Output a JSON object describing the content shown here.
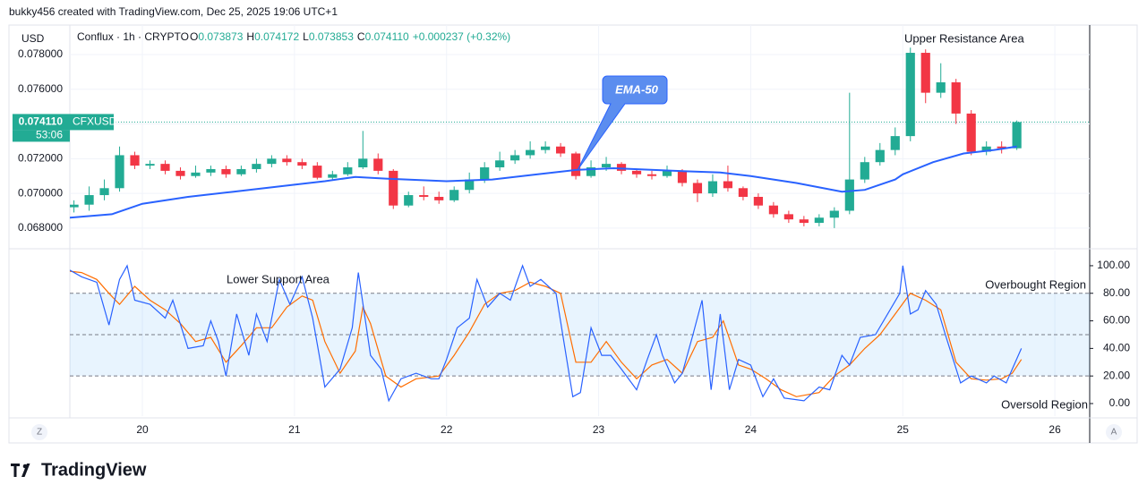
{
  "credit": "bukky456 created with TradingView.com, Dec 25, 2025 19:06 UTC+1",
  "logo": "TradingView",
  "axis_buttons": [
    "Z",
    "A"
  ],
  "chart_data": {
    "type": "candlestick",
    "title": "Conflux · 1h · CRYPTO",
    "currency": "USD",
    "ohlc": [
      {
        "label": "O",
        "value": "0.073873"
      },
      {
        "label": "H",
        "value": "0.074172"
      },
      {
        "label": "L",
        "value": "0.073853"
      },
      {
        "label": "C",
        "value": "0.074110"
      }
    ],
    "change": "+0.000237 (+0.32%)",
    "up_color": "#22ab94",
    "down_color": "#f23645",
    "x": [
      19.55,
      19.65,
      19.75,
      19.85,
      19.95,
      20.05,
      20.15,
      20.25,
      20.35,
      20.45,
      20.55,
      20.65,
      20.75,
      20.85,
      20.95,
      21.05,
      21.15,
      21.25,
      21.35,
      21.45,
      21.55,
      21.65,
      21.75,
      21.85,
      21.95,
      22.05,
      22.15,
      22.25,
      22.35,
      22.45,
      22.55,
      22.65,
      22.75,
      22.85,
      22.95,
      23.05,
      23.15,
      23.25,
      23.35,
      23.45,
      23.55,
      23.65,
      23.75,
      23.85,
      23.95,
      24.05,
      24.15,
      24.25,
      24.35,
      24.45,
      24.55,
      24.65,
      24.75,
      24.85,
      24.95,
      25.05,
      25.15,
      25.25,
      25.35,
      25.45,
      25.55,
      25.65,
      25.75
    ],
    "open": [
      0.0692,
      0.06935,
      0.0699,
      0.0703,
      0.0722,
      0.0716,
      0.0717,
      0.0713,
      0.071,
      0.0712,
      0.0714,
      0.0711,
      0.0714,
      0.0717,
      0.072,
      0.0718,
      0.0716,
      0.0709,
      0.0711,
      0.0715,
      0.072,
      0.0713,
      0.0693,
      0.0699,
      0.0698,
      0.0696,
      0.0702,
      0.0708,
      0.0715,
      0.0719,
      0.0722,
      0.0725,
      0.0727,
      0.0723,
      0.071,
      0.0715,
      0.0717,
      0.0713,
      0.0711,
      0.071,
      0.0713,
      0.0706,
      0.07,
      0.0707,
      0.0703,
      0.0698,
      0.0693,
      0.0688,
      0.0685,
      0.0683,
      0.0686,
      0.069,
      0.0708,
      0.0718,
      0.0725,
      0.0733,
      0.0781,
      0.0758,
      0.0764,
      0.0746,
      0.0724,
      0.0727,
      0.0726
    ],
    "high": [
      0.0696,
      0.0704,
      0.0708,
      0.0727,
      0.0724,
      0.0719,
      0.0719,
      0.0715,
      0.0716,
      0.0716,
      0.0716,
      0.0716,
      0.072,
      0.0722,
      0.0722,
      0.072,
      0.0718,
      0.0713,
      0.0718,
      0.0736,
      0.0723,
      0.0714,
      0.0701,
      0.0704,
      0.0701,
      0.0704,
      0.0712,
      0.0718,
      0.0724,
      0.0725,
      0.073,
      0.073,
      0.0729,
      0.0724,
      0.0719,
      0.0721,
      0.0718,
      0.0714,
      0.0713,
      0.0716,
      0.0714,
      0.0708,
      0.0711,
      0.0716,
      0.0704,
      0.07,
      0.0695,
      0.069,
      0.0687,
      0.0688,
      0.0692,
      0.0758,
      0.0721,
      0.0729,
      0.0738,
      0.0784,
      0.0783,
      0.0775,
      0.0766,
      0.0748,
      0.073,
      0.073,
      0.0742
    ],
    "low": [
      0.0689,
      0.069,
      0.0696,
      0.0701,
      0.0714,
      0.0714,
      0.0711,
      0.0708,
      0.0709,
      0.071,
      0.0709,
      0.071,
      0.0712,
      0.0715,
      0.0716,
      0.0714,
      0.0708,
      0.0708,
      0.071,
      0.0714,
      0.0711,
      0.0691,
      0.0692,
      0.0696,
      0.0694,
      0.0695,
      0.07,
      0.0706,
      0.0713,
      0.0717,
      0.072,
      0.0723,
      0.0721,
      0.0708,
      0.0709,
      0.0713,
      0.0711,
      0.0709,
      0.0708,
      0.0709,
      0.0704,
      0.0695,
      0.0698,
      0.0701,
      0.0696,
      0.0691,
      0.0686,
      0.0683,
      0.0681,
      0.0681,
      0.068,
      0.0688,
      0.0706,
      0.0716,
      0.0722,
      0.073,
      0.0752,
      0.0755,
      0.074,
      0.0722,
      0.0722,
      0.0723,
      0.0725
    ],
    "close": [
      0.06935,
      0.0699,
      0.0703,
      0.0722,
      0.0716,
      0.0717,
      0.0713,
      0.071,
      0.0712,
      0.0714,
      0.0711,
      0.0714,
      0.0717,
      0.072,
      0.0718,
      0.0716,
      0.0709,
      0.0711,
      0.0715,
      0.072,
      0.0713,
      0.0693,
      0.0699,
      0.0698,
      0.0696,
      0.0702,
      0.0708,
      0.0715,
      0.0719,
      0.0722,
      0.0725,
      0.0727,
      0.0723,
      0.071,
      0.0715,
      0.0717,
      0.0713,
      0.0711,
      0.071,
      0.0713,
      0.0706,
      0.07,
      0.0707,
      0.0703,
      0.0698,
      0.0693,
      0.0688,
      0.0685,
      0.0683,
      0.0686,
      0.069,
      0.0708,
      0.0718,
      0.0725,
      0.0733,
      0.0781,
      0.0758,
      0.0764,
      0.0746,
      0.0724,
      0.0727,
      0.0726,
      0.07411
    ],
    "xlim": [
      19.523,
      26.229
    ],
    "xticks": [
      20,
      21,
      22,
      23,
      24,
      25,
      26
    ],
    "ylim": [
      0.06686,
      0.0797
    ],
    "yticks": [
      {
        "value": 0.068,
        "label": "0.068000"
      },
      {
        "value": 0.07,
        "label": "0.070000"
      },
      {
        "value": 0.072,
        "label": "0.072000"
      },
      {
        "value": 0.074,
        "label": "0.074000"
      },
      {
        "value": 0.076,
        "label": "0.076000"
      },
      {
        "value": 0.078,
        "label": "0.078000"
      }
    ],
    "last_price": {
      "value": 0.07411,
      "label": "0.074110",
      "symbol": "CFXUSD",
      "countdown": "53:06"
    },
    "ema": {
      "label": "EMA-50",
      "color": "#2962ff",
      "x": [
        19.52,
        19.8,
        20.0,
        20.3,
        20.6,
        21.0,
        21.2,
        21.4,
        21.6,
        22.0,
        22.3,
        22.6,
        22.85,
        23.1,
        23.5,
        23.8,
        24.0,
        24.3,
        24.6,
        24.75,
        24.95,
        25.0,
        25.2,
        25.4,
        25.6,
        25.75
      ],
      "values": [
        0.0686,
        0.0688,
        0.0694,
        0.0698,
        0.0701,
        0.0705,
        0.0707,
        0.07095,
        0.07085,
        0.0707,
        0.0708,
        0.0711,
        0.07135,
        0.07145,
        0.0713,
        0.0712,
        0.071,
        0.0706,
        0.0701,
        0.0702,
        0.0708,
        0.0711,
        0.0718,
        0.0723,
        0.0725,
        0.0727
      ]
    },
    "annotations": [
      "Upper Resistance Area",
      "Lower Support Area",
      "Overbought Region",
      "Oversold Region"
    ],
    "stoch": {
      "ylim": [
        -9.1,
        111
      ],
      "yticks": [
        {
          "value": 0,
          "label": "0.00"
        },
        {
          "value": 20,
          "label": "20.00"
        },
        {
          "value": 40,
          "label": "40.00"
        },
        {
          "value": 60,
          "label": "60.00"
        },
        {
          "value": 80,
          "label": "80.00"
        },
        {
          "value": 100,
          "label": "100.00"
        }
      ],
      "levels": [
        20,
        50,
        80
      ],
      "k": {
        "color": "#2962ff",
        "x": [
          19.52,
          19.6,
          19.7,
          19.78,
          19.85,
          19.9,
          19.95,
          20.05,
          20.15,
          20.2,
          20.3,
          20.4,
          20.45,
          20.5,
          20.55,
          20.62,
          20.7,
          20.75,
          20.82,
          20.9,
          20.97,
          21.05,
          21.12,
          21.2,
          21.3,
          21.38,
          21.42,
          21.5,
          21.57,
          21.62,
          21.7,
          21.8,
          21.9,
          21.95,
          22.0,
          22.07,
          22.15,
          22.2,
          22.27,
          22.35,
          22.42,
          22.5,
          22.55,
          22.62,
          22.72,
          22.83,
          22.88,
          22.95,
          23.02,
          23.08,
          23.15,
          23.25,
          23.32,
          23.38,
          23.42,
          23.5,
          23.55,
          23.62,
          23.68,
          23.74,
          23.8,
          23.86,
          23.92,
          24.0,
          24.08,
          24.15,
          24.22,
          24.35,
          24.45,
          24.52,
          24.6,
          24.65,
          24.72,
          24.82,
          24.9,
          24.98,
          25.0,
          25.05,
          25.1,
          25.15,
          25.22,
          25.28,
          25.38,
          25.45,
          25.55,
          25.6,
          25.68,
          25.72,
          25.78
        ],
        "values": [
          97,
          92,
          88,
          57,
          90,
          100,
          75,
          72,
          62,
          75,
          40,
          42,
          60,
          45,
          20,
          65,
          35,
          65,
          45,
          90,
          72,
          92,
          62,
          12,
          25,
          55,
          95,
          35,
          25,
          2,
          18,
          22,
          18,
          18,
          32,
          55,
          62,
          90,
          70,
          80,
          75,
          100,
          85,
          90,
          80,
          5,
          8,
          55,
          35,
          35,
          25,
          10,
          32,
          50,
          35,
          15,
          22,
          50,
          75,
          10,
          65,
          10,
          32,
          28,
          5,
          18,
          4,
          2,
          12,
          10,
          35,
          28,
          48,
          50,
          65,
          80,
          100,
          65,
          68,
          82,
          72,
          50,
          15,
          20,
          15,
          20,
          15,
          25,
          40
        ]
      },
      "d": {
        "color": "#ff6d00",
        "x": [
          19.52,
          19.6,
          19.7,
          19.78,
          19.85,
          19.95,
          20.05,
          20.15,
          20.25,
          20.35,
          20.45,
          20.55,
          20.65,
          20.75,
          20.85,
          20.95,
          21.05,
          21.12,
          21.2,
          21.3,
          21.4,
          21.45,
          21.5,
          21.6,
          21.7,
          21.8,
          21.95,
          22.05,
          22.15,
          22.25,
          22.35,
          22.45,
          22.55,
          22.65,
          22.75,
          22.85,
          22.95,
          23.05,
          23.15,
          23.25,
          23.35,
          23.45,
          23.55,
          23.65,
          23.75,
          23.82,
          23.92,
          24.0,
          24.1,
          24.2,
          24.3,
          24.45,
          24.55,
          24.65,
          24.75,
          24.85,
          24.95,
          25.05,
          25.15,
          25.25,
          25.35,
          25.45,
          25.55,
          25.65,
          25.72,
          25.78
        ],
        "values": [
          96,
          95,
          90,
          80,
          72,
          85,
          75,
          68,
          58,
          45,
          48,
          30,
          42,
          55,
          55,
          70,
          78,
          75,
          45,
          22,
          38,
          70,
          58,
          20,
          12,
          18,
          20,
          35,
          52,
          72,
          80,
          82,
          88,
          85,
          80,
          30,
          30,
          45,
          30,
          18,
          28,
          32,
          22,
          45,
          48,
          60,
          28,
          25,
          18,
          10,
          5,
          8,
          20,
          28,
          40,
          50,
          65,
          80,
          75,
          68,
          30,
          18,
          17,
          18,
          22,
          32
        ]
      }
    }
  }
}
